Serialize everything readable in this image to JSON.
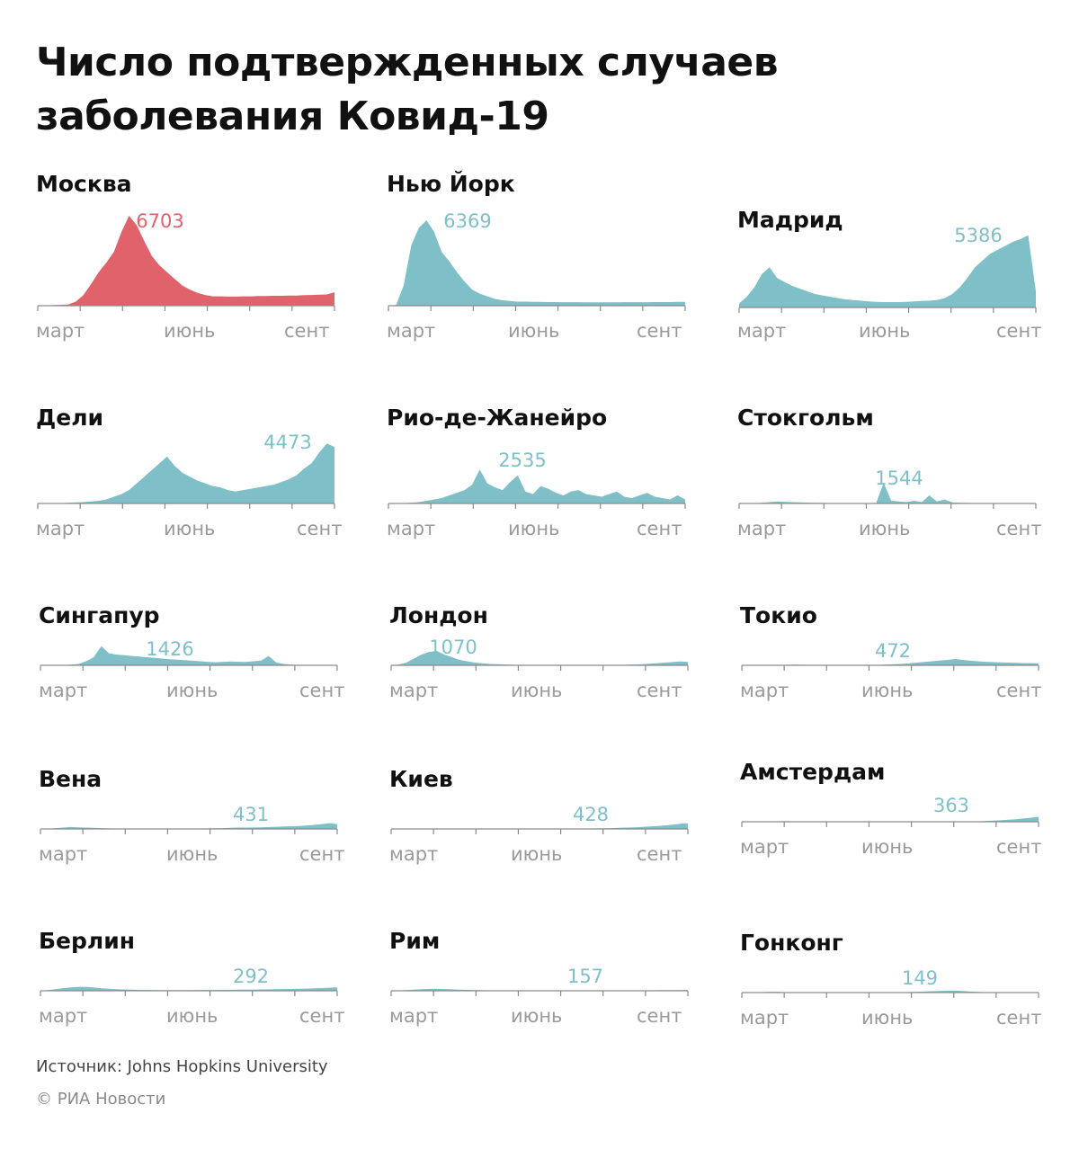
{
  "title": "Число подтвержденных случаев заболевания Ковид-19",
  "source": "Источник: Johns Hopkins University",
  "copyright": "© РИА Новости",
  "colors": {
    "moscow": "#e0626b",
    "other": "#7fbfc7",
    "axis": "#8a8a8a",
    "month_label": "#9a9a9a",
    "text": "#111111"
  },
  "chart_data": [
    {
      "type": "area",
      "city": "Москва",
      "peak_label": "6703",
      "peak": 6703,
      "color": "#e0626b",
      "x_labels": [
        "март",
        "июнь",
        "сент"
      ],
      "values": [
        10,
        20,
        40,
        60,
        80,
        300,
        800,
        1600,
        2500,
        3200,
        4000,
        5500,
        6703,
        6000,
        4800,
        3700,
        3000,
        2500,
        2000,
        1500,
        1200,
        950,
        800,
        700,
        700,
        680,
        680,
        700,
        700,
        720,
        720,
        740,
        740,
        760,
        760,
        790,
        800,
        820,
        840,
        1000
      ]
    },
    {
      "type": "area",
      "city": "Нью Йорк",
      "peak_label": "6369",
      "peak": 6369,
      "color": "#7fbfc7",
      "x_labels": [
        "март",
        "июнь",
        "сент"
      ],
      "values": [
        0,
        50,
        1500,
        4500,
        5800,
        6369,
        5500,
        4000,
        3300,
        2500,
        1800,
        1200,
        900,
        700,
        500,
        400,
        350,
        300,
        300,
        280,
        280,
        270,
        270,
        260,
        260,
        260,
        250,
        250,
        250,
        250,
        250,
        260,
        260,
        260,
        260,
        270,
        270,
        270,
        280,
        280
      ]
    },
    {
      "type": "area",
      "city": "Мадрид",
      "peak_label": "5386",
      "peak": 5386,
      "color": "#7fbfc7",
      "x_labels": [
        "март",
        "июнь",
        "сент"
      ],
      "values": [
        300,
        800,
        1500,
        2500,
        3000,
        2200,
        1900,
        1600,
        1400,
        1200,
        1000,
        900,
        800,
        700,
        600,
        550,
        500,
        450,
        420,
        400,
        400,
        400,
        420,
        450,
        480,
        500,
        550,
        700,
        1000,
        1500,
        2200,
        3000,
        3500,
        4000,
        4300,
        4600,
        4900,
        5100,
        5386,
        1200
      ]
    },
    {
      "type": "area",
      "city": "Дели",
      "peak_label": "4473",
      "peak": 4473,
      "color": "#7fbfc7",
      "x_labels": [
        "март",
        "июнь",
        "сент"
      ],
      "values": [
        0,
        0,
        0,
        10,
        50,
        80,
        100,
        150,
        200,
        300,
        500,
        700,
        1000,
        1500,
        2000,
        2500,
        3000,
        3500,
        2800,
        2300,
        2000,
        1700,
        1500,
        1300,
        1200,
        1000,
        900,
        1000,
        1100,
        1200,
        1300,
        1400,
        1600,
        1800,
        2100,
        2600,
        3000,
        3800,
        4473,
        4200
      ]
    },
    {
      "type": "area",
      "city": "Рио-де-Жанейро",
      "peak_label": "2535",
      "peak": 2535,
      "color": "#7fbfc7",
      "x_labels": [
        "март",
        "июнь",
        "сент"
      ],
      "values": [
        0,
        0,
        30,
        60,
        100,
        200,
        300,
        400,
        600,
        800,
        1000,
        1400,
        2535,
        1500,
        1200,
        1000,
        1600,
        2100,
        900,
        700,
        1300,
        1100,
        800,
        600,
        900,
        1000,
        700,
        600,
        500,
        700,
        900,
        500,
        400,
        600,
        800,
        500,
        400,
        300,
        600,
        300
      ]
    },
    {
      "type": "area",
      "city": "Стокгольм",
      "peak_label": "1544",
      "peak": 1544,
      "color": "#7fbfc7",
      "x_labels": [
        "март",
        "июнь",
        "сент"
      ],
      "values": [
        0,
        0,
        20,
        50,
        100,
        150,
        120,
        100,
        80,
        60,
        50,
        40,
        30,
        20,
        30,
        20,
        20,
        30,
        20,
        1544,
        200,
        150,
        100,
        200,
        100,
        600,
        150,
        300,
        80,
        50,
        40,
        30,
        20,
        20,
        20,
        10,
        10,
        10,
        10,
        10
      ]
    },
    {
      "type": "area",
      "city": "Сингапур",
      "peak_label": "1426",
      "peak": 1426,
      "color": "#7fbfc7",
      "x_labels": [
        "март",
        "июнь",
        "сент"
      ],
      "values": [
        0,
        0,
        10,
        20,
        50,
        100,
        300,
        600,
        1426,
        900,
        800,
        750,
        700,
        650,
        600,
        550,
        500,
        450,
        420,
        380,
        340,
        300,
        260,
        230,
        260,
        280,
        260,
        250,
        300,
        350,
        700,
        200,
        100,
        50,
        30,
        20,
        10,
        10,
        5,
        5
      ]
    },
    {
      "type": "area",
      "city": "Лондон",
      "peak_label": "1070",
      "peak": 1070,
      "color": "#7fbfc7",
      "x_labels": [
        "март",
        "июнь",
        "сент"
      ],
      "values": [
        0,
        50,
        200,
        500,
        800,
        1000,
        1070,
        800,
        600,
        400,
        300,
        200,
        150,
        100,
        80,
        60,
        40,
        30,
        25,
        20,
        15,
        15,
        15,
        15,
        15,
        15,
        15,
        20,
        20,
        20,
        30,
        40,
        60,
        80,
        120,
        160,
        200,
        240,
        280,
        260
      ]
    },
    {
      "type": "area",
      "city": "Токио",
      "peak_label": "472",
      "peak": 472,
      "color": "#7fbfc7",
      "x_labels": [
        "март",
        "июнь",
        "сент"
      ],
      "values": [
        0,
        0,
        0,
        10,
        20,
        30,
        40,
        50,
        40,
        30,
        20,
        15,
        10,
        10,
        10,
        10,
        10,
        20,
        30,
        60,
        80,
        100,
        150,
        200,
        250,
        300,
        350,
        400,
        472,
        400,
        350,
        300,
        260,
        240,
        220,
        200,
        180,
        170,
        160,
        150
      ]
    },
    {
      "type": "area",
      "city": "Вена",
      "peak_label": "431",
      "peak": 431,
      "color": "#7fbfc7",
      "x_labels": [
        "март",
        "июнь",
        "сент"
      ],
      "values": [
        0,
        20,
        60,
        100,
        140,
        120,
        100,
        80,
        60,
        40,
        30,
        20,
        15,
        10,
        10,
        10,
        15,
        15,
        20,
        25,
        30,
        35,
        40,
        50,
        60,
        80,
        100,
        100,
        110,
        120,
        140,
        160,
        180,
        200,
        220,
        260,
        300,
        360,
        431,
        350
      ]
    },
    {
      "type": "area",
      "city": "Киев",
      "peak_label": "428",
      "peak": 428,
      "color": "#7fbfc7",
      "x_labels": [
        "март",
        "июнь",
        "сент"
      ],
      "values": [
        0,
        0,
        0,
        0,
        5,
        10,
        10,
        10,
        10,
        10,
        10,
        10,
        10,
        10,
        10,
        10,
        10,
        10,
        15,
        20,
        20,
        20,
        25,
        25,
        30,
        30,
        35,
        40,
        50,
        60,
        80,
        100,
        120,
        150,
        180,
        220,
        260,
        320,
        380,
        428
      ]
    },
    {
      "type": "area",
      "city": "Амстердам",
      "peak_label": "363",
      "peak": 363,
      "color": "#7fbfc7",
      "x_labels": [
        "март",
        "июнь",
        "сент"
      ],
      "values": [
        0,
        0,
        10,
        20,
        30,
        40,
        40,
        35,
        30,
        25,
        20,
        15,
        10,
        10,
        5,
        5,
        5,
        5,
        5,
        5,
        5,
        5,
        5,
        5,
        5,
        5,
        5,
        5,
        5,
        10,
        20,
        30,
        50,
        80,
        110,
        150,
        190,
        240,
        300,
        363
      ]
    },
    {
      "type": "area",
      "city": "Берлин",
      "peak_label": "292",
      "peak": 292,
      "color": "#7fbfc7",
      "x_labels": [
        "март",
        "июнь",
        "сент"
      ],
      "values": [
        0,
        50,
        120,
        200,
        250,
        280,
        292,
        240,
        190,
        150,
        120,
        100,
        80,
        70,
        60,
        50,
        50,
        50,
        50,
        50,
        50,
        60,
        60,
        60,
        70,
        70,
        80,
        80,
        90,
        100,
        110,
        120,
        130,
        140,
        150,
        160,
        180,
        200,
        230,
        260
      ]
    },
    {
      "type": "area",
      "city": "Рим",
      "peak_label": "157",
      "peak": 157,
      "color": "#7fbfc7",
      "x_labels": [
        "март",
        "июнь",
        "сент"
      ],
      "values": [
        0,
        20,
        50,
        90,
        120,
        140,
        157,
        130,
        110,
        90,
        70,
        55,
        40,
        30,
        20,
        15,
        10,
        10,
        8,
        8,
        8,
        8,
        8,
        8,
        8,
        8,
        10,
        10,
        10,
        12,
        15,
        20,
        25,
        30,
        35,
        40,
        45,
        50,
        55,
        60
      ]
    },
    {
      "type": "area",
      "city": "Гонконг",
      "peak_label": "149",
      "peak": 149,
      "color": "#7fbfc7",
      "x_labels": [
        "март",
        "июнь",
        "сент"
      ],
      "values": [
        0,
        10,
        20,
        40,
        60,
        50,
        30,
        20,
        10,
        5,
        5,
        5,
        5,
        5,
        5,
        5,
        5,
        5,
        5,
        5,
        10,
        20,
        40,
        60,
        80,
        100,
        120,
        140,
        149,
        120,
        80,
        50,
        30,
        20,
        10,
        5,
        5,
        5,
        5,
        5
      ]
    }
  ]
}
